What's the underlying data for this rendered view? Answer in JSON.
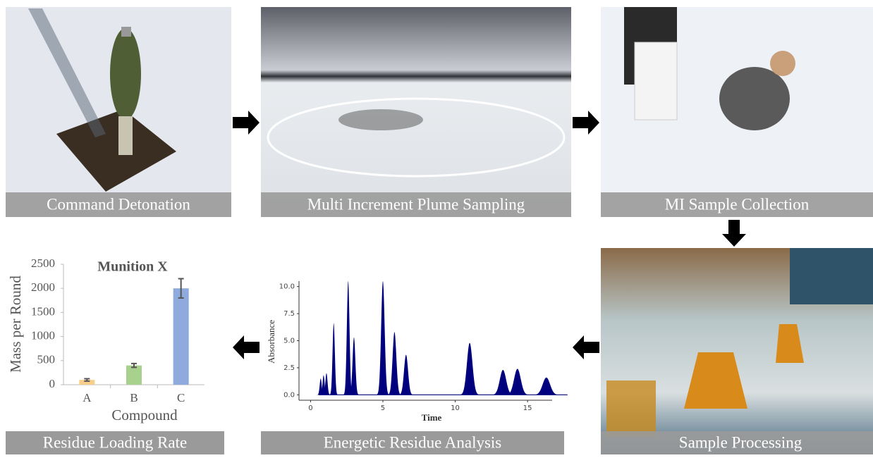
{
  "panels": [
    "Command Detonation",
    "Multi Increment Plume Sampling",
    "MI Sample Collection",
    "Sample Processing",
    "Energetic Residue Analysis",
    "Residue Loading Rate"
  ],
  "bar_chart": {
    "type": "bar",
    "title": "Munition X",
    "y_label": "Mass per Round",
    "x_label": "Compound",
    "categories": [
      "A",
      "B",
      "C"
    ],
    "values": [
      100,
      400,
      2000
    ],
    "errors": [
      25,
      40,
      200
    ],
    "colors": [
      "#f8cf8a",
      "#a9d18e",
      "#8faadc"
    ],
    "ylim": [
      0,
      2500
    ],
    "yticks": [
      0,
      500,
      1000,
      1500,
      2000,
      2500
    ]
  },
  "chromatogram": {
    "type": "area",
    "x_label": "Time",
    "y_label": "Absorbance",
    "color": "#00007f",
    "peaks": {
      "time": [
        0.7,
        0.9,
        1.1,
        1.6,
        2.6,
        3.0,
        5.0,
        5.8,
        6.6,
        11.0,
        13.3,
        14.3,
        16.3
      ],
      "height": [
        1.5,
        1.8,
        2.0,
        6.6,
        10.5,
        5.3,
        10.5,
        5.8,
        3.7,
        4.8,
        2.3,
        2.4,
        1.6
      ]
    },
    "xlim": [
      -0.8,
      16.7
    ],
    "ylim": [
      -0.5,
      10.5
    ],
    "xticks": [
      0,
      5,
      10,
      15
    ],
    "yticks": [
      {
        "value": 0,
        "label": "0.0"
      },
      {
        "value": 2.5,
        "label": "2.5"
      },
      {
        "value": 5,
        "label": "5.0"
      },
      {
        "value": 7.5,
        "label": "7.5"
      },
      {
        "value": 10,
        "label": "10.0"
      }
    ]
  }
}
